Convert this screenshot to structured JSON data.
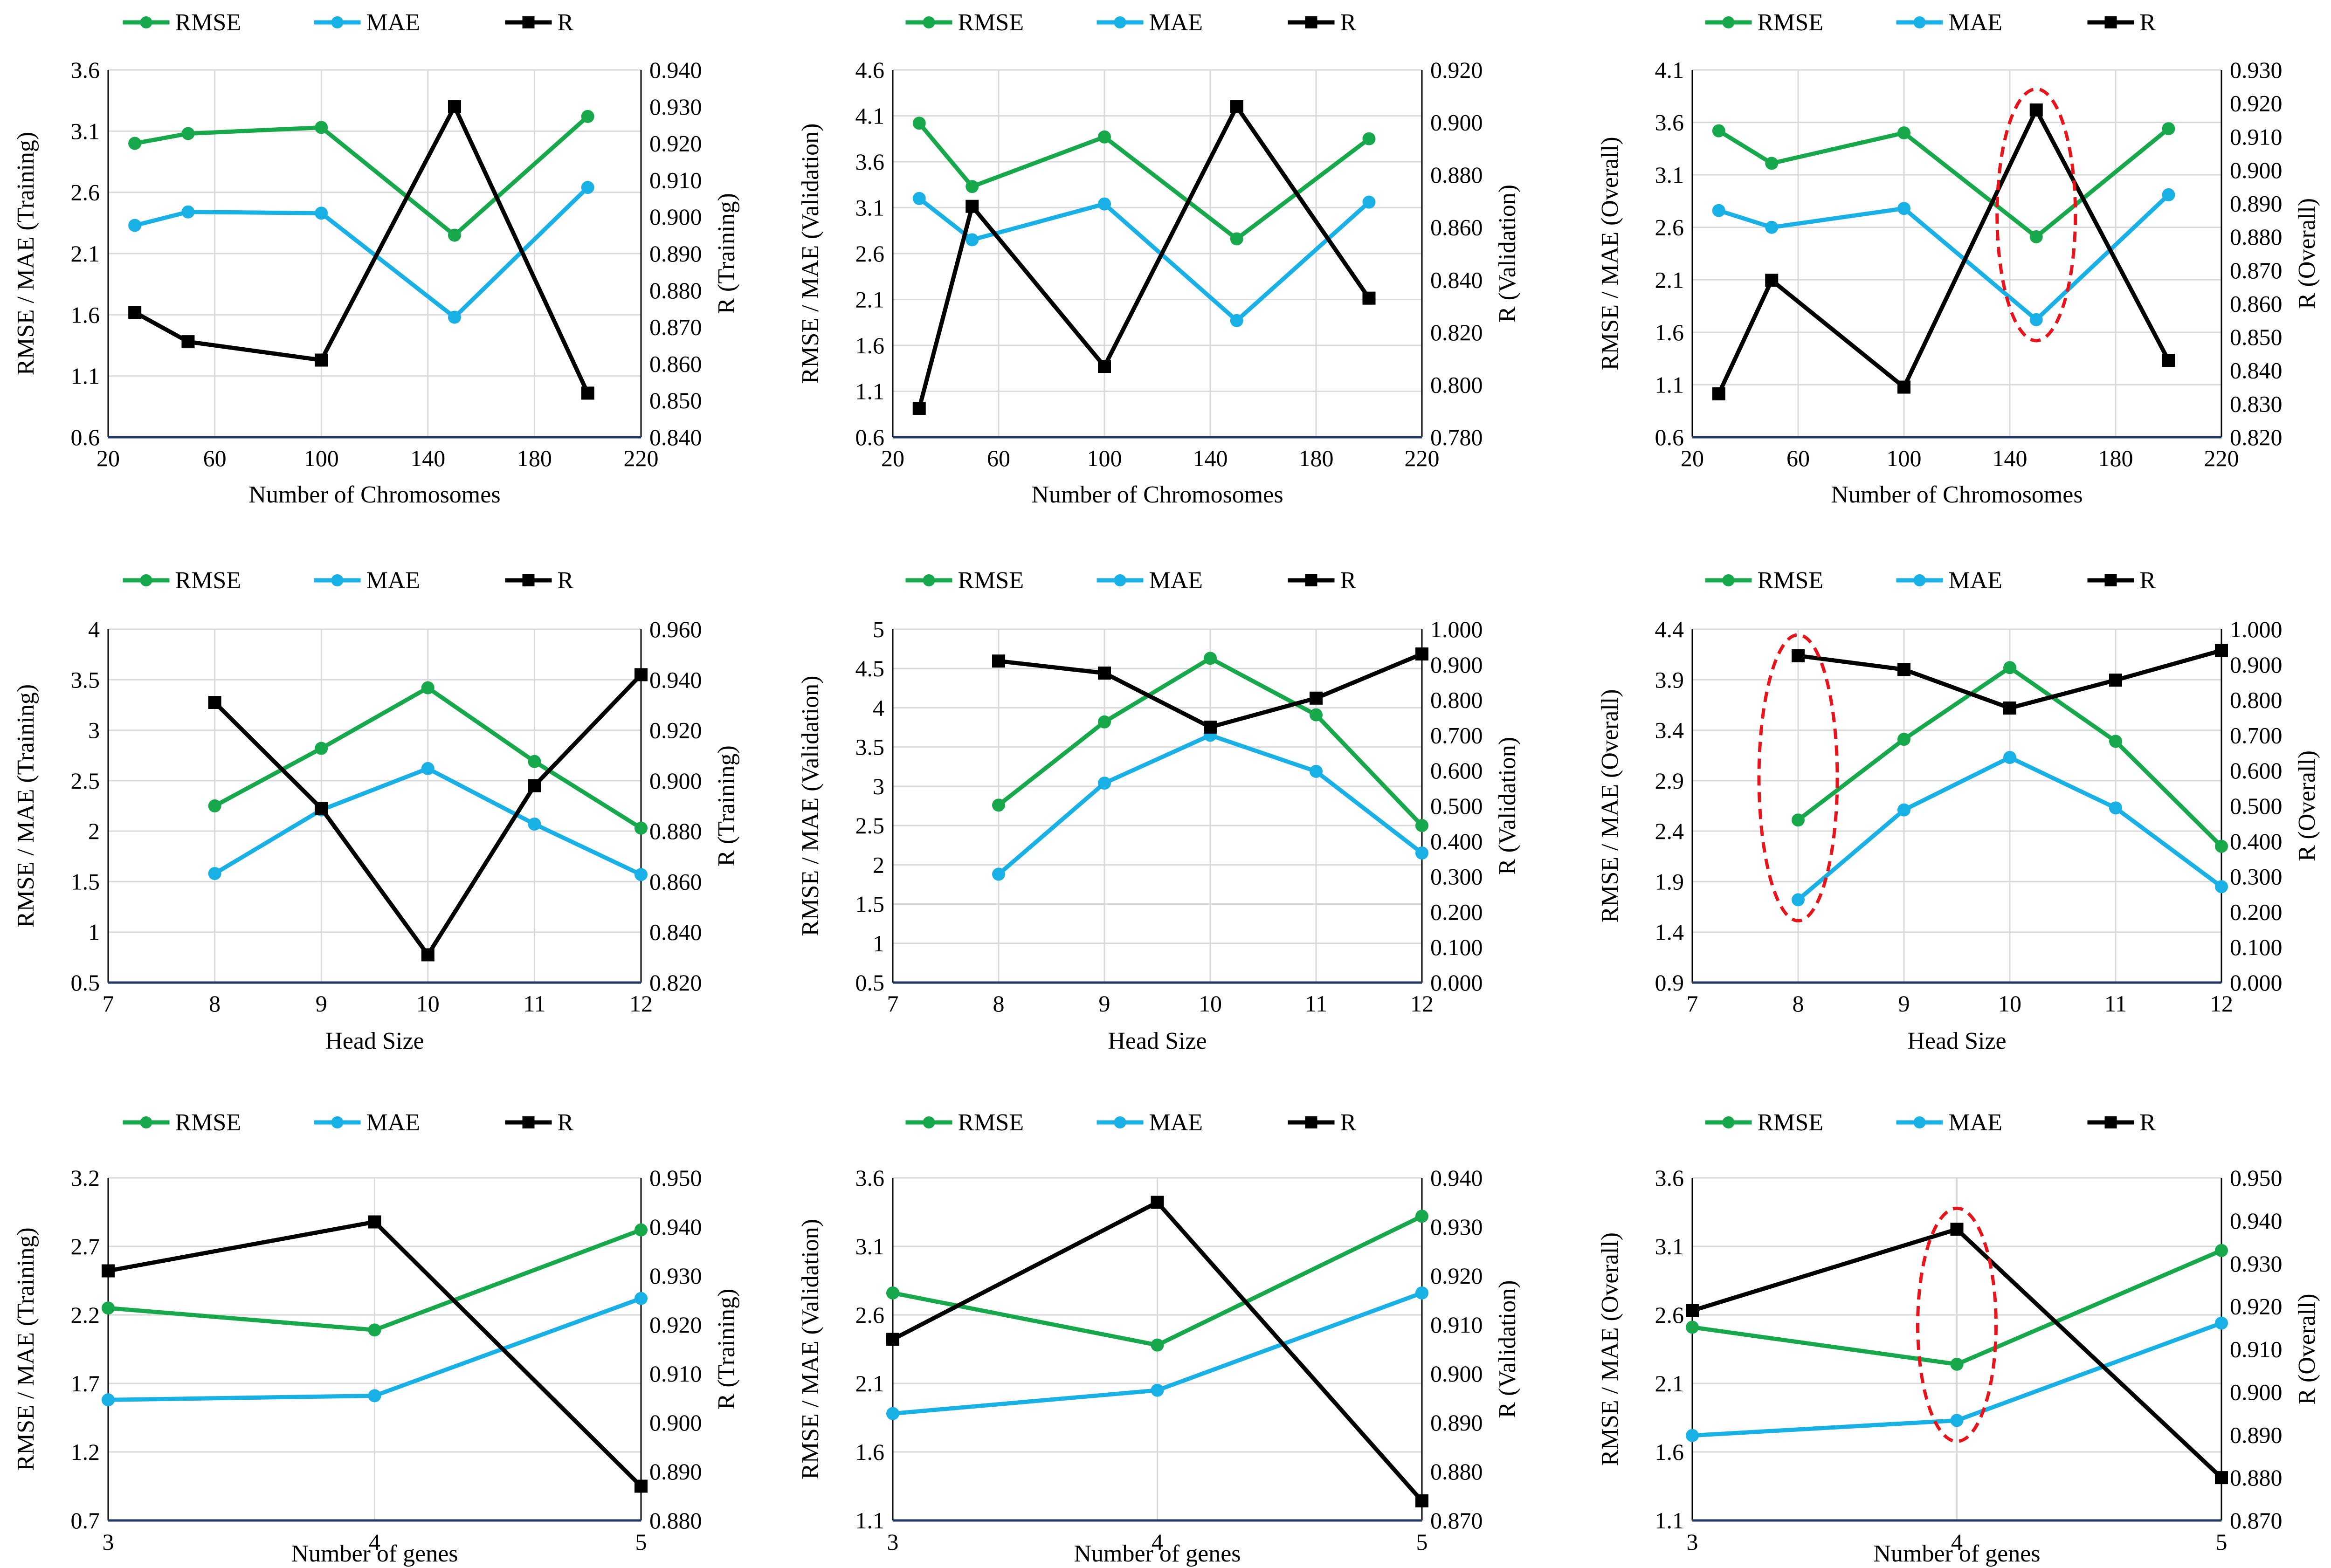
{
  "colors": {
    "rmse": "#17A84B",
    "mae": "#19B0E6",
    "r": "#000000",
    "highlight": "#E8141B",
    "grid": "#D9D9D9",
    "axis": "#1F3864"
  },
  "chart_data": [
    {
      "type": "line",
      "id": "chrom-training",
      "legend": [
        "RMSE",
        "MAE",
        "R"
      ],
      "xlabel": "Number of Chromosomes",
      "ylabel": "RMSE / MAE (Training)",
      "y2label": "R (Training)",
      "xlim": [
        20,
        220
      ],
      "xticks": [
        "20",
        "60",
        "100",
        "140",
        "180",
        "220"
      ],
      "ylim": [
        0.6,
        3.6
      ],
      "yticks": [
        "0.6",
        "1.1",
        "1.6",
        "2.1",
        "2.6",
        "3.1",
        "3.6"
      ],
      "y2lim": [
        0.84,
        0.94
      ],
      "y2ticks": [
        "0.840",
        "0.850",
        "0.860",
        "0.870",
        "0.880",
        "0.890",
        "0.900",
        "0.910",
        "0.920",
        "0.930",
        "0.940"
      ],
      "x": [
        30,
        50,
        100,
        150,
        200
      ],
      "series": [
        {
          "name": "RMSE",
          "axis": "left",
          "values": [
            3.0,
            3.08,
            3.13,
            2.25,
            3.22
          ]
        },
        {
          "name": "MAE",
          "axis": "left",
          "values": [
            2.33,
            2.44,
            2.43,
            1.58,
            2.64
          ]
        },
        {
          "name": "R",
          "axis": "right",
          "values": [
            0.874,
            0.866,
            0.861,
            0.93,
            0.852
          ]
        }
      ]
    },
    {
      "type": "line",
      "id": "chrom-validation",
      "legend": [
        "RMSE",
        "MAE",
        "R"
      ],
      "xlabel": "Number of Chromosomes",
      "ylabel": "RMSE / MAE (Validation)",
      "y2label": "R (Validation)",
      "xlim": [
        20,
        220
      ],
      "xticks": [
        "20",
        "60",
        "100",
        "140",
        "180",
        "220"
      ],
      "ylim": [
        0.6,
        4.6
      ],
      "yticks": [
        "0.6",
        "1.1",
        "1.6",
        "2.1",
        "2.6",
        "3.1",
        "3.6",
        "4.1",
        "4.6"
      ],
      "y2lim": [
        0.78,
        0.92
      ],
      "y2ticks": [
        "0.780",
        "0.800",
        "0.820",
        "0.840",
        "0.860",
        "0.880",
        "0.900",
        "0.920"
      ],
      "x": [
        30,
        50,
        100,
        150,
        200
      ],
      "series": [
        {
          "name": "RMSE",
          "axis": "left",
          "values": [
            4.02,
            3.33,
            3.87,
            2.76,
            3.85
          ]
        },
        {
          "name": "MAE",
          "axis": "left",
          "values": [
            3.2,
            2.75,
            3.14,
            1.87,
            3.16
          ]
        },
        {
          "name": "R",
          "axis": "right",
          "values": [
            0.791,
            0.868,
            0.807,
            0.906,
            0.833
          ]
        }
      ]
    },
    {
      "type": "line",
      "id": "chrom-overall",
      "legend": [
        "RMSE",
        "MAE",
        "R"
      ],
      "xlabel": "Number of Chromosomes",
      "ylabel": "RMSE / MAE (Overall)",
      "y2label": "R (Overall)",
      "xlim": [
        20,
        220
      ],
      "xticks": [
        "20",
        "60",
        "100",
        "140",
        "180",
        "220"
      ],
      "ylim": [
        0.6,
        4.1
      ],
      "yticks": [
        "0.6",
        "1.1",
        "1.6",
        "2.1",
        "2.6",
        "3.1",
        "3.6",
        "4.1"
      ],
      "y2lim": [
        0.82,
        0.93
      ],
      "y2ticks": [
        "0.820",
        "0.830",
        "0.840",
        "0.850",
        "0.860",
        "0.870",
        "0.880",
        "0.890",
        "0.900",
        "0.910",
        "0.920",
        "0.930"
      ],
      "x": [
        30,
        50,
        100,
        150,
        200
      ],
      "series": [
        {
          "name": "RMSE",
          "axis": "left",
          "values": [
            3.52,
            3.21,
            3.5,
            2.51,
            3.54
          ]
        },
        {
          "name": "MAE",
          "axis": "left",
          "values": [
            2.76,
            2.6,
            2.78,
            1.72,
            2.91
          ]
        },
        {
          "name": "R",
          "axis": "right",
          "values": [
            0.833,
            0.867,
            0.835,
            0.918,
            0.843
          ]
        }
      ],
      "highlight_x": 150
    },
    {
      "type": "line",
      "id": "head-training",
      "legend": [
        "RMSE",
        "MAE",
        "R"
      ],
      "xlabel": "Head Size",
      "ylabel": "RMSE / MAE (Training)",
      "y2label": "R (Training)",
      "xlim": [
        7,
        12
      ],
      "xticks": [
        "7",
        "8",
        "9",
        "10",
        "11",
        "12"
      ],
      "ylim": [
        0.5,
        4
      ],
      "yticks": [
        "0.5",
        "1",
        "1.5",
        "2",
        "2.5",
        "3",
        "3.5",
        "4"
      ],
      "y2lim": [
        0.82,
        0.96
      ],
      "y2ticks": [
        "0.820",
        "0.840",
        "0.860",
        "0.880",
        "0.900",
        "0.920",
        "0.940",
        "0.960"
      ],
      "x": [
        8,
        9,
        10,
        11,
        12
      ],
      "series": [
        {
          "name": "RMSE",
          "axis": "left",
          "values": [
            2.25,
            2.82,
            3.42,
            2.69,
            2.03
          ]
        },
        {
          "name": "MAE",
          "axis": "left",
          "values": [
            1.58,
            2.21,
            2.62,
            2.07,
            1.57
          ]
        },
        {
          "name": "R",
          "axis": "right",
          "values": [
            0.931,
            0.889,
            0.831,
            0.898,
            0.942
          ]
        }
      ]
    },
    {
      "type": "line",
      "id": "head-validation",
      "legend": [
        "RMSE",
        "MAE",
        "R"
      ],
      "xlabel": "Head Size",
      "ylabel": "RMSE / MAE (Validation)",
      "y2label": "R (Validation)",
      "xlim": [
        7,
        12
      ],
      "xticks": [
        "7",
        "8",
        "9",
        "10",
        "11",
        "12"
      ],
      "ylim": [
        0.5,
        5
      ],
      "yticks": [
        "0.5",
        "1",
        "1.5",
        "2",
        "2.5",
        "3",
        "3.5",
        "4",
        "4.5",
        "5"
      ],
      "y2lim": [
        0.0,
        1.0
      ],
      "y2ticks": [
        "0.000",
        "0.100",
        "0.200",
        "0.300",
        "0.400",
        "0.500",
        "0.600",
        "0.700",
        "0.800",
        "0.900",
        "1.000"
      ],
      "x": [
        8,
        9,
        10,
        11,
        12
      ],
      "series": [
        {
          "name": "RMSE",
          "axis": "left",
          "values": [
            2.76,
            3.82,
            4.63,
            3.91,
            2.5
          ]
        },
        {
          "name": "MAE",
          "axis": "left",
          "values": [
            1.88,
            3.04,
            3.65,
            3.19,
            2.15
          ]
        },
        {
          "name": "R",
          "axis": "right",
          "values": [
            0.91,
            0.876,
            0.723,
            0.805,
            0.93
          ]
        }
      ]
    },
    {
      "type": "line",
      "id": "head-overall",
      "legend": [
        "RMSE",
        "MAE",
        "R"
      ],
      "xlabel": "Head Size",
      "ylabel": "RMSE / MAE (Overall)",
      "y2label": "R (Overall)",
      "xlim": [
        7,
        12
      ],
      "xticks": [
        "7",
        "8",
        "9",
        "10",
        "11",
        "12"
      ],
      "ylim": [
        0.9,
        4.4
      ],
      "yticks": [
        "0.9",
        "1.4",
        "1.9",
        "2.4",
        "2.9",
        "3.4",
        "3.9",
        "4.4"
      ],
      "y2lim": [
        0.0,
        1.0
      ],
      "y2ticks": [
        "0.000",
        "0.100",
        "0.200",
        "0.300",
        "0.400",
        "0.500",
        "0.600",
        "0.700",
        "0.800",
        "0.900",
        "1.000"
      ],
      "x": [
        8,
        9,
        10,
        11,
        12
      ],
      "series": [
        {
          "name": "RMSE",
          "axis": "left",
          "values": [
            2.51,
            3.31,
            4.02,
            3.29,
            2.25
          ]
        },
        {
          "name": "MAE",
          "axis": "left",
          "values": [
            1.72,
            2.61,
            3.13,
            2.63,
            1.85
          ]
        },
        {
          "name": "R",
          "axis": "right",
          "values": [
            0.925,
            0.886,
            0.777,
            0.856,
            0.94
          ]
        }
      ],
      "highlight_x": 8
    },
    {
      "type": "line",
      "id": "genes-training",
      "legend": [
        "RMSE",
        "MAE",
        "R"
      ],
      "xlabel": "Number of genes",
      "ylabel": "RMSE / MAE (Training)",
      "y2label": "R (Training)",
      "xlim": [
        3,
        5
      ],
      "xticks": [
        "3",
        "4",
        "5"
      ],
      "ylim": [
        0.7,
        3.2
      ],
      "yticks": [
        "0.7",
        "1.2",
        "1.7",
        "2.2",
        "2.7",
        "3.2"
      ],
      "y2lim": [
        0.88,
        0.95
      ],
      "y2ticks": [
        "0.880",
        "0.890",
        "0.900",
        "0.910",
        "0.920",
        "0.930",
        "0.940",
        "0.950"
      ],
      "x": [
        3,
        4,
        5
      ],
      "series": [
        {
          "name": "RMSE",
          "axis": "left",
          "values": [
            2.25,
            2.09,
            2.82
          ]
        },
        {
          "name": "MAE",
          "axis": "left",
          "values": [
            1.58,
            1.61,
            2.32
          ]
        },
        {
          "name": "R",
          "axis": "right",
          "values": [
            0.931,
            0.941,
            0.887
          ]
        }
      ]
    },
    {
      "type": "line",
      "id": "genes-validation",
      "legend": [
        "RMSE",
        "MAE",
        "R"
      ],
      "xlabel": "Number of genes",
      "ylabel": "RMSE / MAE (Validation)",
      "y2label": "R (Validation)",
      "xlim": [
        3,
        5
      ],
      "xticks": [
        "3",
        "4",
        "5"
      ],
      "ylim": [
        1.1,
        3.6
      ],
      "yticks": [
        "1.1",
        "1.6",
        "2.1",
        "2.6",
        "3.1",
        "3.6"
      ],
      "y2lim": [
        0.87,
        0.94
      ],
      "y2ticks": [
        "0.870",
        "0.880",
        "0.890",
        "0.900",
        "0.910",
        "0.920",
        "0.930",
        "0.940"
      ],
      "x": [
        3,
        4,
        5
      ],
      "series": [
        {
          "name": "RMSE",
          "axis": "left",
          "values": [
            2.76,
            2.38,
            3.32
          ]
        },
        {
          "name": "MAE",
          "axis": "left",
          "values": [
            1.88,
            2.05,
            2.76
          ]
        },
        {
          "name": "R",
          "axis": "right",
          "values": [
            0.907,
            0.935,
            0.874
          ]
        }
      ]
    },
    {
      "type": "line",
      "id": "genes-overall",
      "legend": [
        "RMSE",
        "MAE",
        "R"
      ],
      "xlabel": "Number of genes",
      "ylabel": "RMSE / MAE (Overall)",
      "y2label": "R (Overall)",
      "xlim": [
        3,
        5
      ],
      "xticks": [
        "3",
        "4",
        "5"
      ],
      "ylim": [
        1.1,
        3.6
      ],
      "yticks": [
        "1.1",
        "1.6",
        "2.1",
        "2.6",
        "3.1",
        "3.6"
      ],
      "y2lim": [
        0.87,
        0.95
      ],
      "y2ticks": [
        "0.870",
        "0.880",
        "0.890",
        "0.900",
        "0.910",
        "0.920",
        "0.930",
        "0.940",
        "0.950"
      ],
      "x": [
        3,
        4,
        5
      ],
      "series": [
        {
          "name": "RMSE",
          "axis": "left",
          "values": [
            2.51,
            2.24,
            3.07
          ]
        },
        {
          "name": "MAE",
          "axis": "left",
          "values": [
            1.72,
            1.83,
            2.54
          ]
        },
        {
          "name": "R",
          "axis": "right",
          "values": [
            0.919,
            0.938,
            0.88
          ]
        }
      ],
      "highlight_x": 4
    }
  ]
}
